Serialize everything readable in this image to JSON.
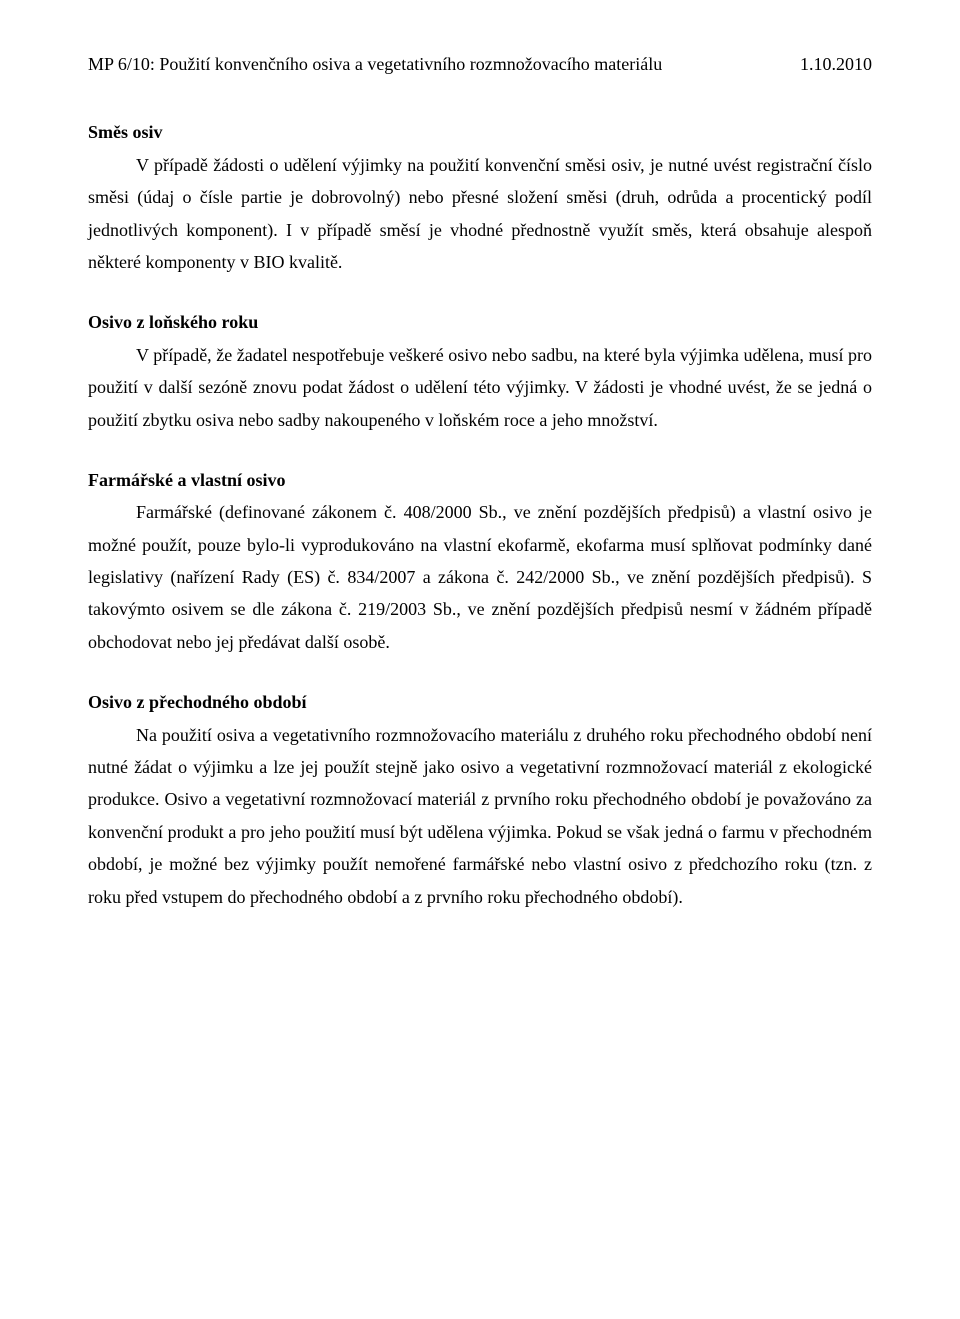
{
  "header": {
    "left": "MP 6/10: Použití konvenčního osiva a vegetativního rozmnožovacího materiálu",
    "right": "1.10.2010"
  },
  "sections": {
    "smes_osiv": {
      "heading": "Směs osiv",
      "paragraph": "V případě žádosti o udělení výjimky na použití konvenční směsi osiv, je nutné uvést registrační číslo směsi (údaj o čísle partie je dobrovolný) nebo přesné složení směsi (druh, odrůda a procentický podíl jednotlivých komponent). I v případě směsí je vhodné přednostně využít směs, která obsahuje alespoň některé  komponenty v BIO kvalitě."
    },
    "osivo_lonskeho": {
      "heading": "Osivo z loňského roku",
      "paragraph": "V případě, že žadatel nespotřebuje veškeré osivo nebo sadbu, na které byla výjimka udělena, musí pro použití v další sezóně znovu podat žádost o udělení této výjimky. V žádosti je vhodné uvést, že se jedná o použití zbytku osiva nebo sadby nakoupeného v loňském roce a jeho množství."
    },
    "farmarske": {
      "heading": "Farmářské a vlastní osivo",
      "paragraph": "Farmářské (definované zákonem č. 408/2000 Sb., ve znění pozdějších předpisů) a vlastní osivo je možné použít, pouze bylo-li vyprodukováno na vlastní ekofarmě, ekofarma musí splňovat podmínky dané legislativy (nařízení Rady (ES) č. 834/2007 a zákona č. 242/2000 Sb., ve znění pozdějších předpisů). S takovýmto osivem se dle zákona č. 219/2003 Sb., ve znění pozdějších předpisů nesmí v žádném případě obchodovat nebo jej předávat další osobě."
    },
    "osivo_prechodneho": {
      "heading": "Osivo z přechodného období",
      "paragraph": "Na použití osiva a vegetativního rozmnožovacího materiálu z druhého roku přechodného období není nutné žádat o výjimku a lze jej použít stejně jako osivo a vegetativní rozmnožovací materiál z ekologické produkce. Osivo a vegetativní rozmnožovací materiál z prvního roku přechodného období je považováno za konvenční produkt a pro jeho použití musí být udělena výjimka. Pokud se však jedná o farmu v přechodném období, je možné bez výjimky použít nemořené farmářské nebo vlastní osivo z předchozího roku (tzn. z roku před vstupem do přechodného období a z prvního roku přechodného období)."
    }
  }
}
